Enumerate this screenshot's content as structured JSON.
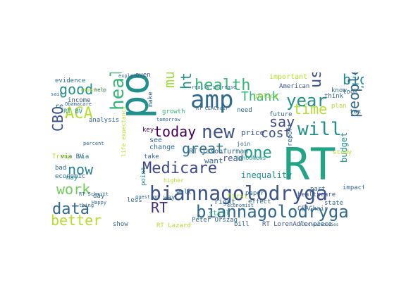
{
  "wordcloud": {
    "palette": {
      "purple": "#440154",
      "indigo": "#3b528b",
      "blue": "#31688e",
      "teal": "#21908d",
      "green": "#35b779",
      "lime": "#5ec962",
      "yellow": "#b5de2b"
    },
    "words": [
      {
        "text": "porszag",
        "color": "#21908d"
      },
      {
        "text": "RT",
        "color": "#21a585"
      },
      {
        "text": "biannagolodryga",
        "color": "#3b528b"
      },
      {
        "text": "biannagolodryga",
        "color": "#31688e"
      },
      {
        "text": "amp",
        "color": "#31688e"
      },
      {
        "text": "health care",
        "color": "#35b779"
      },
      {
        "text": "new",
        "color": "#3b528b"
      },
      {
        "text": "health",
        "color": "#35b779"
      },
      {
        "text": "good",
        "color": "#21908d"
      },
      {
        "text": "ACA",
        "color": "#b5de2b"
      },
      {
        "text": "data",
        "color": "#31688e"
      },
      {
        "text": "work",
        "color": "#6ece58"
      },
      {
        "text": "Medicare",
        "color": "#3e4989"
      },
      {
        "text": "will",
        "color": "#21908d"
      },
      {
        "text": "year",
        "color": "#21908d"
      },
      {
        "text": "Thank",
        "color": "#35b779"
      },
      {
        "text": "cost",
        "color": "#3b528b"
      },
      {
        "text": "today",
        "color": "#440154"
      },
      {
        "text": "great",
        "color": "#2c728e"
      },
      {
        "text": "one",
        "color": "#1f9e89"
      },
      {
        "text": "time",
        "color": "#b5de2b"
      },
      {
        "text": "say",
        "color": "#3e4989"
      },
      {
        "text": "now",
        "color": "#26828e"
      },
      {
        "text": "CBO",
        "color": "#3b528b"
      },
      {
        "text": "better",
        "color": "#b5de2b"
      },
      {
        "text": "much",
        "color": "#9fda3a"
      },
      {
        "text": "https",
        "color": "#21908d"
      },
      {
        "text": "us",
        "color": "#3b528b"
      },
      {
        "text": "big",
        "color": "#21908d"
      },
      {
        "text": "people",
        "color": "#31688e"
      },
      {
        "text": "budget",
        "color": "#21908d"
      },
      {
        "text": "RT",
        "color": "#46327e"
      },
      {
        "text": "evidence",
        "color": "#2c728e"
      },
      {
        "text": "income",
        "color": "#3b528b"
      },
      {
        "text": "RT BV",
        "color": "#21908d"
      },
      {
        "text": "via BV",
        "color": "#31688e"
      },
      {
        "text": "Trump",
        "color": "#b5de2b"
      },
      {
        "text": "via",
        "color": "#26828e"
      },
      {
        "text": "analysis",
        "color": "#31688e"
      },
      {
        "text": "may",
        "color": "#1f9e89"
      },
      {
        "text": "economic",
        "color": "#31688e"
      },
      {
        "text": "bad",
        "color": "#31688e"
      },
      {
        "text": "day",
        "color": "#31688e"
      },
      {
        "text": "show",
        "color": "#31688e"
      },
      {
        "text": "even",
        "color": "#3b528b"
      },
      {
        "text": "growth",
        "color": "#35b779"
      },
      {
        "text": "make",
        "color": "#31688e"
      },
      {
        "text": "see",
        "color": "#31688e"
      },
      {
        "text": "change",
        "color": "#2c728e"
      },
      {
        "text": "take",
        "color": "#31688e"
      },
      {
        "text": "key",
        "color": "#440154"
      },
      {
        "text": "point",
        "color": "#21908d"
      },
      {
        "text": "way",
        "color": "#31688e"
      },
      {
        "text": "RT jasonfurman",
        "color": "#31688e"
      },
      {
        "text": "RT Lazard",
        "color": "#b5de2b"
      },
      {
        "text": "Peter Orszag",
        "color": "#31688e"
      },
      {
        "text": "RT LorenAdler",
        "color": "#3b528b"
      },
      {
        "text": "want",
        "color": "#31688e"
      },
      {
        "text": "read",
        "color": "#3b528b"
      },
      {
        "text": "inequality",
        "color": "#21908d"
      },
      {
        "text": "right",
        "color": "#31688e"
      },
      {
        "text": "first",
        "color": "#b5de2b"
      },
      {
        "text": "still",
        "color": "#35b779"
      },
      {
        "text": "paper",
        "color": "#31688e"
      },
      {
        "text": "effect",
        "color": "#31688e"
      },
      {
        "text": "price",
        "color": "#3b528b"
      },
      {
        "text": "need",
        "color": "#31688e"
      },
      {
        "text": "important",
        "color": "#b5de2b"
      },
      {
        "text": "American",
        "color": "#3b528b"
      },
      {
        "text": "policy",
        "color": "#b5de2b"
      },
      {
        "text": "future",
        "color": "#31688e"
      },
      {
        "text": "report",
        "color": "#31688e"
      },
      {
        "text": "healthcare",
        "color": "#3b528b"
      },
      {
        "text": "state",
        "color": "#31688e"
      },
      {
        "text": "piece",
        "color": "#31688e"
      },
      {
        "text": "part",
        "color": "#31688e"
      },
      {
        "text": "plan",
        "color": "#b5de2b"
      },
      {
        "text": "tax",
        "color": "#31688e"
      },
      {
        "text": "look",
        "color": "#31688e"
      },
      {
        "text": "think",
        "color": "#31688e"
      },
      {
        "text": "know",
        "color": "#31688e"
      },
      {
        "text": "impact",
        "color": "#31688e"
      },
      {
        "text": "CEAChair",
        "color": "#31688e"
      },
      {
        "text": "study",
        "color": "#b5de2b"
      },
      {
        "text": "life expectancy",
        "color": "#b5de2b"
      },
      {
        "text": "YahooNews",
        "color": "#21908d"
      },
      {
        "text": "join",
        "color": "#31688e"
      },
      {
        "text": "well",
        "color": "#31688e"
      },
      {
        "text": "less",
        "color": "#31688e"
      },
      {
        "text": "bill",
        "color": "#31688e"
      },
      {
        "text": "research",
        "color": "#b5de2b"
      },
      {
        "text": "explain",
        "color": "#31688e"
      },
      {
        "text": "really increase",
        "color": "#31688e"
      },
      {
        "text": "RT Schmitt",
        "color": "#31688e"
      },
      {
        "text": "Obamacare",
        "color": "#31688e"
      },
      {
        "text": "percent",
        "color": "#31688e"
      },
      {
        "text": "Happy",
        "color": "#31688e"
      },
      {
        "text": "thing",
        "color": "#31688e"
      },
      {
        "text": "question",
        "color": "#31688e"
      },
      {
        "text": "higher",
        "color": "#b5de2b"
      },
      {
        "text": "economist",
        "color": "#31688e"
      },
      {
        "text": "RT CEAChair",
        "color": "#31688e"
      },
      {
        "text": "RT CheafGoodies",
        "color": "#31688e"
      },
      {
        "text": "tomorrow",
        "color": "#31688e"
      },
      {
        "text": "said",
        "color": "#31688e"
      },
      {
        "text": "re",
        "color": "#31688e"
      },
      {
        "text": "help",
        "color": "#31688e"
      }
    ]
  }
}
